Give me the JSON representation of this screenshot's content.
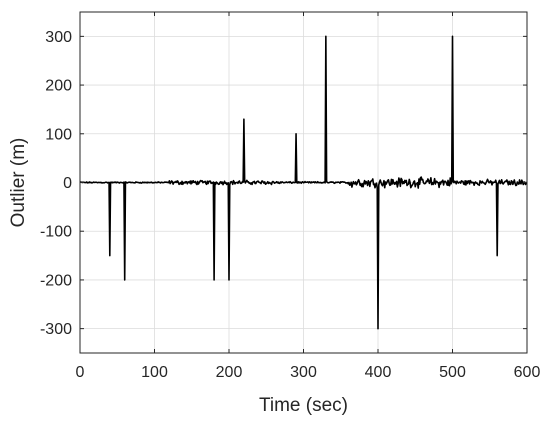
{
  "chart_data": {
    "type": "line",
    "title": "",
    "xlabel": "Time (sec)",
    "ylabel": "Outlier (m)",
    "xlim": [
      0,
      600
    ],
    "ylim": [
      -350,
      350
    ],
    "xticks": [
      0,
      100,
      200,
      300,
      400,
      500,
      600
    ],
    "yticks": [
      -300,
      -200,
      -100,
      0,
      100,
      200,
      300
    ],
    "grid": true,
    "line_color": "#000000",
    "noise_segments": [
      {
        "range": [
          0,
          120
        ],
        "amplitude": 1.5
      },
      {
        "range": [
          120,
          270
        ],
        "amplitude": 5
      },
      {
        "range": [
          270,
          360
        ],
        "amplitude": 2
      },
      {
        "range": [
          360,
          500
        ],
        "amplitude": 12
      },
      {
        "range": [
          500,
          600
        ],
        "amplitude": 7
      }
    ],
    "outliers": [
      {
        "x": 40,
        "y": -150
      },
      {
        "x": 60,
        "y": -200
      },
      {
        "x": 180,
        "y": -200
      },
      {
        "x": 200,
        "y": -200
      },
      {
        "x": 220,
        "y": 130
      },
      {
        "x": 290,
        "y": 100
      },
      {
        "x": 330,
        "y": 300
      },
      {
        "x": 400,
        "y": -300
      },
      {
        "x": 500,
        "y": 300
      },
      {
        "x": 560,
        "y": -150
      }
    ]
  }
}
